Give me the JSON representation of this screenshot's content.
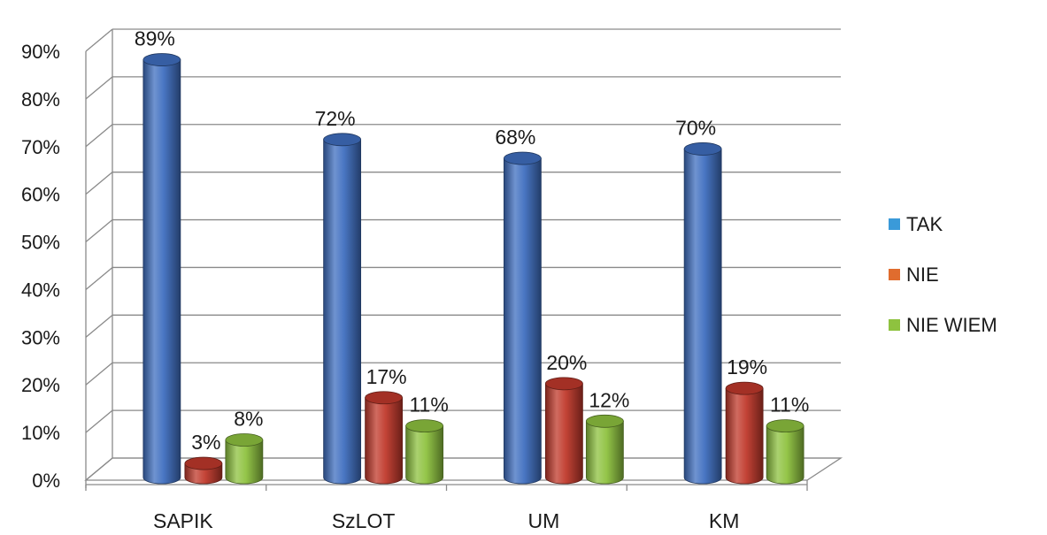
{
  "chart_data": {
    "type": "bar",
    "categories": [
      "SAPIK",
      "SzLOT",
      "UM",
      "KM"
    ],
    "series": [
      {
        "name": "TAK",
        "values": [
          89,
          72,
          68,
          70
        ],
        "color": "#3f6fc0"
      },
      {
        "name": "NIE",
        "values": [
          3,
          17,
          20,
          19
        ],
        "color": "#c0392b"
      },
      {
        "name": "NIE WIEM",
        "values": [
          8,
          11,
          12,
          11
        ],
        "color": "#8ec23f"
      }
    ],
    "data_labels": [
      [
        "89%",
        "72%",
        "68%",
        "70%"
      ],
      [
        "3%",
        "17%",
        "20%",
        "19%"
      ],
      [
        "8%",
        "11%",
        "12%",
        "11%"
      ]
    ],
    "y_ticks": [
      "0%",
      "10%",
      "20%",
      "30%",
      "40%",
      "50%",
      "60%",
      "70%",
      "80%",
      "90%"
    ],
    "ylim": [
      0,
      90
    ],
    "title": "",
    "xlabel": "",
    "ylabel": "",
    "grid": true,
    "legend_position": "right",
    "style": "3d-cylinder"
  }
}
